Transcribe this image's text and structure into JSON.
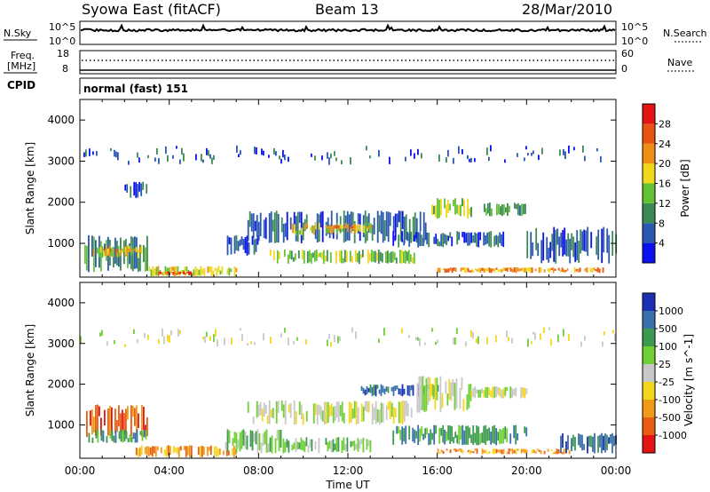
{
  "header": {
    "station": "Syowa East (fitACF)",
    "beam": "Beam 13",
    "date": "28/Mar/2010"
  },
  "top_panels": {
    "nsky_label": "N.Sky",
    "nsky_tick_top": "10^5",
    "nsky_tick_bottom": "10^0",
    "nsearch_label": "N.Search",
    "nsearch_tick_top": "10^5",
    "nsearch_tick_bottom": "10^0",
    "freq_label_1": "Freq.",
    "freq_label_2": "[MHz]",
    "freq_tick_top": "18",
    "freq_tick_bottom": "8",
    "nave_label": "Nave",
    "nave_tick_top": "60",
    "nave_tick_bottom": "0",
    "cpid_label": "CPID",
    "cpid_value": "normal (fast) 151"
  },
  "chart_data": {
    "type": "heatmap",
    "xlabel": "Time UT",
    "x_ticks": [
      "00:00",
      "04:00",
      "08:00",
      "12:00",
      "16:00",
      "20:00",
      "00:00"
    ],
    "xlim_hours": [
      0,
      24
    ],
    "ylabel": "Slant Range [km]",
    "y_ticks": [
      1000,
      2000,
      3000,
      4000
    ],
    "ylim_km": [
      180,
      4500
    ],
    "power": {
      "colorbar_label": "Power [dB]",
      "colorbar_ticks": [
        "4",
        "8",
        "12",
        "16",
        "20",
        "24",
        "28"
      ],
      "colors": [
        "#0a10ee",
        "#2a58b0",
        "#3b8a56",
        "#63c234",
        "#f0d71c",
        "#f08e16",
        "#e8530f",
        "#e41414"
      ],
      "regions": [
        {
          "t0": 0.2,
          "t1": 3.0,
          "r0": 300,
          "r1": 1200,
          "level": 2
        },
        {
          "t0": 0.5,
          "t1": 2.8,
          "r0": 650,
          "r1": 950,
          "level": 4
        },
        {
          "t0": 1.0,
          "t1": 2.5,
          "r0": 780,
          "r1": 880,
          "level": 5
        },
        {
          "t0": 2.0,
          "t1": 3.0,
          "r0": 2100,
          "r1": 2500,
          "level": 1
        },
        {
          "t0": 3.0,
          "t1": 7.0,
          "r0": 200,
          "r1": 450,
          "level": 4
        },
        {
          "t0": 3.5,
          "t1": 5.0,
          "r0": 220,
          "r1": 330,
          "level": 6
        },
        {
          "t0": 6.5,
          "t1": 8.0,
          "r0": 700,
          "r1": 1200,
          "level": 1
        },
        {
          "t0": 7.5,
          "t1": 15.5,
          "r0": 1000,
          "r1": 1800,
          "level": 1
        },
        {
          "t0": 9.5,
          "t1": 13.0,
          "r0": 1200,
          "r1": 1500,
          "level": 4
        },
        {
          "t0": 11.0,
          "t1": 13.0,
          "r0": 1350,
          "r1": 1450,
          "level": 5
        },
        {
          "t0": 8.5,
          "t1": 15.0,
          "r0": 500,
          "r1": 850,
          "level": 3
        },
        {
          "t0": 14.0,
          "t1": 19.0,
          "r0": 900,
          "r1": 1300,
          "level": 1
        },
        {
          "t0": 15.5,
          "t1": 17.5,
          "r0": 1600,
          "r1": 2100,
          "level": 3
        },
        {
          "t0": 18.0,
          "t1": 20.0,
          "r0": 1650,
          "r1": 2000,
          "level": 2
        },
        {
          "t0": 16.0,
          "t1": 23.5,
          "r0": 280,
          "r1": 420,
          "level": 5
        },
        {
          "t0": 20.0,
          "t1": 24.0,
          "r0": 500,
          "r1": 1400,
          "level": 1
        },
        {
          "t0": 0.0,
          "t1": 24.0,
          "r0": 2900,
          "r1": 3400,
          "level": 1,
          "sparse": true
        }
      ]
    },
    "velocity": {
      "colorbar_label": "Velocity [m s^-1]",
      "colorbar_ticks": [
        "1000",
        "500",
        "100",
        "25",
        "-25",
        "-100",
        "-500",
        "-1000"
      ],
      "colors": [
        "#1a2fb6",
        "#3870a8",
        "#3c9a4e",
        "#70cf35",
        "#c8c8c8",
        "#f3d61e",
        "#f29a18",
        "#ea5c12",
        "#e41414"
      ],
      "regions": [
        {
          "t0": 0.2,
          "t1": 3.0,
          "r0": 700,
          "r1": 1500,
          "level": 7
        },
        {
          "t0": 0.3,
          "t1": 3.0,
          "r0": 550,
          "r1": 900,
          "level": 2
        },
        {
          "t0": 2.5,
          "t1": 7.0,
          "r0": 200,
          "r1": 500,
          "level": 6
        },
        {
          "t0": 6.5,
          "t1": 9.0,
          "r0": 300,
          "r1": 900,
          "level": 3
        },
        {
          "t0": 7.5,
          "t1": 15.0,
          "r0": 1000,
          "r1": 1600,
          "level": 4
        },
        {
          "t0": 9.0,
          "t1": 13.0,
          "r0": 300,
          "r1": 700,
          "level": 3
        },
        {
          "t0": 12.5,
          "t1": 16.0,
          "r0": 1700,
          "r1": 2000,
          "level": 1
        },
        {
          "t0": 15.0,
          "t1": 17.5,
          "r0": 1300,
          "r1": 2200,
          "level": 4
        },
        {
          "t0": 17.5,
          "t1": 20.0,
          "r0": 1650,
          "r1": 1950,
          "level": 4
        },
        {
          "t0": 14.0,
          "t1": 20.0,
          "r0": 500,
          "r1": 1000,
          "level": 2
        },
        {
          "t0": 16.0,
          "t1": 22.0,
          "r0": 280,
          "r1": 420,
          "level": 6
        },
        {
          "t0": 21.5,
          "t1": 24.0,
          "r0": 300,
          "r1": 800,
          "level": 1
        },
        {
          "t0": 0.0,
          "t1": 24.0,
          "r0": 2900,
          "r1": 3400,
          "level": 4,
          "sparse": true
        }
      ]
    }
  }
}
